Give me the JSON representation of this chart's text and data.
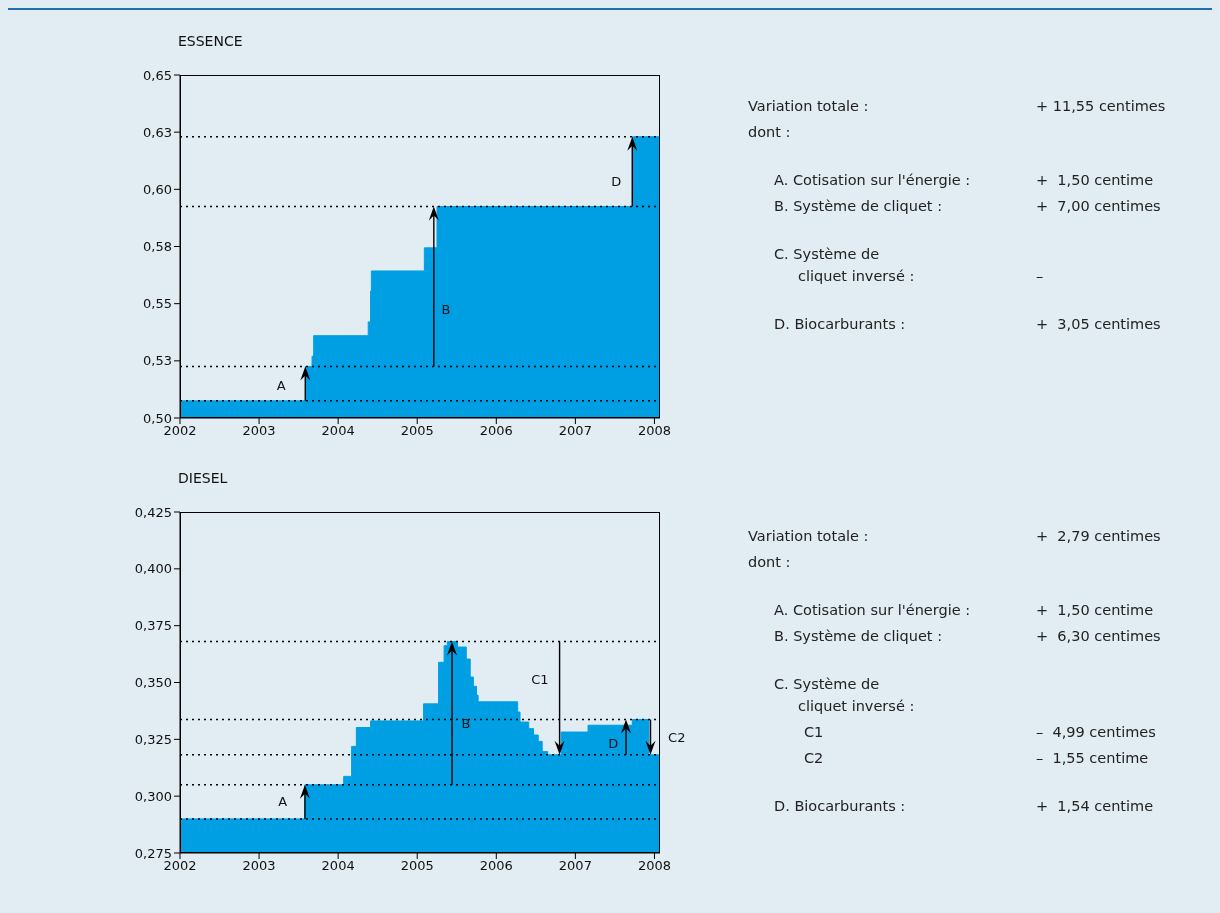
{
  "chart_data": [
    {
      "type": "area",
      "title": "ESSENCE",
      "xlim": [
        2002,
        2008.07
      ],
      "xticks": [
        2002,
        2003,
        2004,
        2005,
        2006,
        2007,
        2008
      ],
      "ylim": [
        0.5,
        0.65
      ],
      "yticks": [
        {
          "value": 0.5,
          "label": "0,50"
        },
        {
          "value": 0.525,
          "label": "0,53"
        },
        {
          "value": 0.55,
          "label": "0,55"
        },
        {
          "value": 0.575,
          "label": "0,58"
        },
        {
          "value": 0.6,
          "label": "0,60"
        },
        {
          "value": 0.625,
          "label": "0,63"
        },
        {
          "value": 0.65,
          "label": "0,65"
        }
      ],
      "series": [
        {
          "type": "area",
          "color": "#009fe3",
          "x": [
            2002,
            2003.585,
            2003.585,
            2003.67,
            2003.67,
            2003.69,
            2003.69,
            2004.38,
            2004.38,
            2004.41,
            2004.41,
            2004.42,
            2004.42,
            2005.09,
            2005.09,
            2005.25,
            2005.25,
            2007.72,
            2007.72,
            2008.07
          ],
          "values": [
            0.5075,
            0.5075,
            0.5225,
            0.5225,
            0.527,
            0.527,
            0.536,
            0.536,
            0.542,
            0.542,
            0.5555,
            0.5555,
            0.5643,
            0.5643,
            0.5744,
            0.5744,
            0.5925,
            0.5925,
            0.623,
            0.623
          ]
        }
      ],
      "ref_lines": [
        {
          "axis": "y",
          "value": 0.5075,
          "line_style": "dotted",
          "color": "#000000"
        },
        {
          "axis": "y",
          "value": 0.5225,
          "line_style": "dotted",
          "color": "#000000"
        },
        {
          "axis": "y",
          "value": 0.5925,
          "line_style": "dotted",
          "color": "#000000"
        },
        {
          "axis": "y",
          "value": 0.623,
          "line_style": "dotted",
          "color": "#000000"
        }
      ],
      "annotations": [
        "A",
        "B",
        "D"
      ]
    },
    {
      "type": "other",
      "annotations": [
        "Variation totale :",
        "+ 11,55 centimes",
        "dont :",
        null,
        "A. Cotisation sur l'énergie :",
        "+  1,50 centime",
        "B. Système de cliquet :",
        "+  7,00 centimes",
        "C. Système de\ncliquet inversé :",
        "–",
        "D. Biocarburants :",
        "+  3,05 centimes"
      ]
    },
    {
      "type": "area",
      "title": "DIESEL",
      "xlim": [
        2002,
        2008.07
      ],
      "xticks": [
        2002,
        2003,
        2004,
        2005,
        2006,
        2007,
        2008
      ],
      "ylim": [
        0.275,
        0.425
      ],
      "yticks": [
        {
          "value": 0.275,
          "label": "0,275"
        },
        {
          "value": 0.3,
          "label": "0,300"
        },
        {
          "value": 0.325,
          "label": "0,325"
        },
        {
          "value": 0.35,
          "label": "0,350"
        },
        {
          "value": 0.375,
          "label": "0,375"
        },
        {
          "value": 0.4,
          "label": "0,400"
        },
        {
          "value": 0.425,
          "label": "0,425"
        }
      ],
      "series": [
        {
          "type": "area",
          "color": "#009fe3",
          "x": [
            2002,
            2003.58,
            2003.58,
            2004.07,
            2004.07,
            2004.17,
            2004.17,
            2004.23,
            2004.23,
            2004.41,
            2004.41,
            2005.08,
            2005.08,
            2005.27,
            2005.27,
            2005.34,
            2005.34,
            2005.38,
            2005.38,
            2005.51,
            2005.51,
            2005.62,
            2005.62,
            2005.67,
            2005.67,
            2005.71,
            2005.71,
            2005.75,
            2005.75,
            2005.77,
            2005.77,
            2006.27,
            2006.27,
            2006.3,
            2006.3,
            2006.41,
            2006.41,
            2006.47,
            2006.47,
            2006.53,
            2006.53,
            2006.58,
            2006.58,
            2006.65,
            2006.65,
            2006.82,
            2006.82,
            2007.16,
            2007.16,
            2007.72,
            2007.72,
            2007.93,
            2007.93,
            2008.07
          ],
          "values": [
            0.29,
            0.29,
            0.305,
            0.305,
            0.3087,
            0.3087,
            0.3219,
            0.3219,
            0.3302,
            0.3302,
            0.3331,
            0.3331,
            0.3406,
            0.3406,
            0.3589,
            0.3589,
            0.3662,
            0.3662,
            0.368,
            0.368,
            0.3656,
            0.3656,
            0.3603,
            0.3603,
            0.3524,
            0.3524,
            0.3483,
            0.3483,
            0.3444,
            0.3444,
            0.3415,
            0.3415,
            0.337,
            0.337,
            0.3326,
            0.3326,
            0.3297,
            0.3297,
            0.3269,
            0.3269,
            0.3241,
            0.3241,
            0.3196,
            0.3196,
            0.3182,
            0.3182,
            0.3282,
            0.3282,
            0.3312,
            0.3312,
            0.3337,
            0.3337,
            0.3182,
            0.3182
          ]
        }
      ],
      "ref_lines": [
        {
          "axis": "y",
          "value": 0.29,
          "line_style": "dotted",
          "color": "#000000"
        },
        {
          "axis": "y",
          "value": 0.305,
          "line_style": "dotted",
          "color": "#000000"
        },
        {
          "axis": "y",
          "value": 0.3182,
          "line_style": "dotted",
          "color": "#000000"
        },
        {
          "axis": "y",
          "value": 0.3337,
          "line_style": "dotted",
          "color": "#000000"
        },
        {
          "axis": "y",
          "value": 0.368,
          "line_style": "dotted",
          "color": "#000000"
        }
      ],
      "annotations": [
        "A",
        "B",
        "C1",
        "D",
        "C2"
      ]
    },
    {
      "type": "other",
      "annotations": [
        "Variation totale :",
        "+  2,79 centimes",
        "dont :",
        null,
        "A. Cotisation sur l'énergie :",
        "+  1,50 centime",
        "B. Système de cliquet :",
        "+  6,30 centimes",
        "C. Système de\ncliquet inversé :",
        null,
        "C1",
        "–  4,99 centimes",
        "C2",
        "–  1,55 centime",
        "D. Biocarburants :",
        "+  1,54 centime"
      ]
    }
  ]
}
